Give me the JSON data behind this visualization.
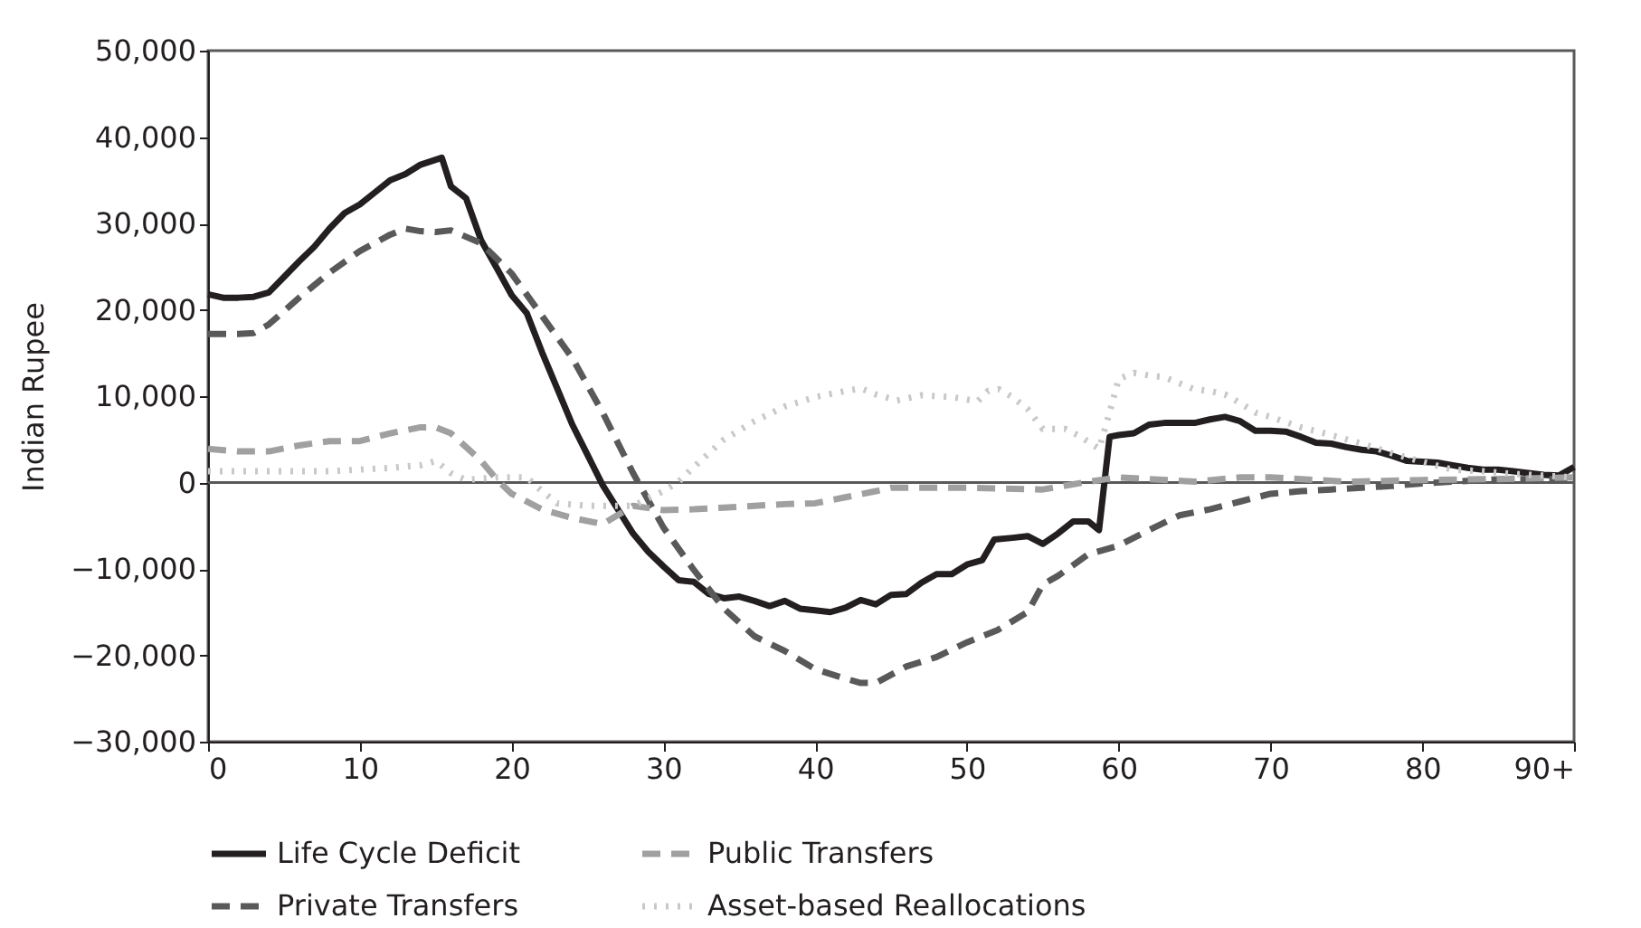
{
  "chart_data": {
    "type": "line",
    "ylabel": "Indian Rupee",
    "xlim": [
      0,
      90
    ],
    "xticks": [
      0,
      10,
      20,
      30,
      40,
      50,
      60,
      70,
      80,
      {
        "value": 90,
        "label": "90+"
      }
    ],
    "ylim": [
      -30000,
      50000
    ],
    "yticks": [
      {
        "value": -30000,
        "label": "−30,000"
      },
      {
        "value": -20000,
        "label": "−20,000"
      },
      {
        "value": -10000,
        "label": "−10,000"
      },
      0,
      {
        "value": 10000,
        "label": "10,000"
      },
      {
        "value": 20000,
        "label": "20,000"
      },
      {
        "value": 30000,
        "label": "30,000"
      },
      {
        "value": 40000,
        "label": "40,000"
      },
      {
        "value": 50000,
        "label": "50,000"
      }
    ],
    "grid": false,
    "legend": "bottom",
    "marker": "none",
    "ref_lines": [
      {
        "axis": "y",
        "value": 0,
        "label": null,
        "color": "#595959"
      }
    ],
    "series": [
      {
        "name": "Life Cycle Deficit",
        "color": "#231f20",
        "line_style": "solid",
        "x": [
          0,
          1,
          2,
          3,
          4,
          5,
          6,
          7,
          8,
          9,
          10,
          11,
          12,
          13,
          14,
          15.4,
          16,
          17,
          18,
          19,
          20,
          21,
          22,
          23,
          24,
          25,
          26,
          27,
          28,
          29,
          30,
          31,
          32,
          33,
          34,
          35,
          36,
          37,
          38,
          39,
          40,
          41,
          42,
          43,
          44,
          45,
          46,
          47,
          48,
          49,
          50,
          51,
          51.8,
          53,
          54,
          55,
          56,
          57,
          58,
          58.7,
          59.4,
          60,
          61,
          62,
          63,
          64,
          65,
          66,
          67,
          68,
          69,
          70,
          71,
          72,
          73,
          74,
          75,
          76,
          77,
          78,
          79,
          80,
          81,
          82,
          83,
          84,
          85,
          86,
          87,
          88,
          89,
          90
        ],
        "values": [
          21800,
          21400,
          21400,
          21500,
          22000,
          23800,
          25600,
          27300,
          29400,
          31200,
          32200,
          33600,
          35000,
          35700,
          36800,
          37600,
          34300,
          32900,
          28000,
          24900,
          21700,
          19600,
          15100,
          10900,
          6700,
          3200,
          -300,
          -3100,
          -5900,
          -8000,
          -9700,
          -11300,
          -11500,
          -12900,
          -13400,
          -13200,
          -13700,
          -14300,
          -13700,
          -14600,
          -14800,
          -15000,
          -14500,
          -13600,
          -14100,
          -13000,
          -12900,
          -11600,
          -10600,
          -10600,
          -9500,
          -9000,
          -6600,
          -6400,
          -6200,
          -7100,
          -5900,
          -4500,
          -4500,
          -5500,
          5300,
          5500,
          5700,
          6700,
          6900,
          6900,
          6900,
          7300,
          7600,
          7100,
          6000,
          6000,
          5900,
          5300,
          4600,
          4500,
          4100,
          3800,
          3600,
          3100,
          2500,
          2400,
          2300,
          2000,
          1700,
          1500,
          1500,
          1300,
          1100,
          900,
          800,
          1800
        ]
      },
      {
        "name": "Private Transfers",
        "color": "#595959",
        "line_style": "dashed",
        "x": [
          0,
          2,
          3,
          4,
          6,
          8,
          10,
          12,
          13,
          14,
          15,
          16,
          18,
          20,
          22,
          24,
          26,
          28,
          30,
          32,
          34,
          36,
          38,
          40,
          42,
          43,
          44,
          46,
          48,
          50,
          52,
          54,
          55,
          56,
          58,
          60,
          62,
          64,
          66,
          68,
          70,
          72,
          74,
          76,
          78,
          80,
          82,
          84,
          86,
          88,
          90
        ],
        "values": [
          17200,
          17200,
          17300,
          18300,
          21400,
          24300,
          26800,
          28700,
          29400,
          29100,
          29000,
          29200,
          27700,
          24200,
          19300,
          14400,
          8100,
          1100,
          -5200,
          -10100,
          -14600,
          -17800,
          -19500,
          -21600,
          -22700,
          -23200,
          -23200,
          -21300,
          -20200,
          -18500,
          -17100,
          -15000,
          -11800,
          -10800,
          -8300,
          -7300,
          -5500,
          -3800,
          -3100,
          -2200,
          -1300,
          -1000,
          -800,
          -600,
          -400,
          -100,
          100,
          300,
          400,
          400,
          400
        ]
      },
      {
        "name": "Public Transfers",
        "color": "#a0a0a0",
        "line_style": "dashed",
        "x": [
          0,
          2,
          4,
          6,
          8,
          10,
          12,
          14,
          15,
          16,
          18,
          19,
          20,
          22,
          24,
          26,
          28,
          30,
          32,
          34,
          36,
          38,
          40,
          42,
          44,
          45,
          50,
          55,
          58,
          60,
          62,
          65,
          68,
          70,
          75,
          80,
          85,
          90
        ],
        "values": [
          3900,
          3600,
          3600,
          4300,
          4800,
          4800,
          5700,
          6400,
          6400,
          5700,
          2500,
          400,
          -1300,
          -3100,
          -4100,
          -4800,
          -2700,
          -3200,
          -3100,
          -2900,
          -2700,
          -2500,
          -2400,
          -1700,
          -1000,
          -600,
          -600,
          -800,
          100,
          600,
          400,
          100,
          600,
          600,
          100,
          300,
          400,
          600
        ]
      },
      {
        "name": "Asset-based Reallocations",
        "color": "#c8c8c8",
        "line_style": "dotted",
        "x": [
          0,
          4,
          8,
          12,
          14,
          15,
          16,
          17,
          19,
          21,
          22,
          23,
          25,
          28,
          30,
          31,
          32,
          34,
          36,
          38,
          40,
          42,
          43,
          44,
          45.4,
          47,
          49,
          50.7,
          51.4,
          52.1,
          53,
          54,
          55,
          56.5,
          57.5,
          58.7,
          59.4,
          60,
          61,
          62,
          63,
          64,
          65,
          66,
          67,
          68,
          69,
          70,
          72,
          74,
          76,
          78,
          80,
          82,
          84,
          86,
          88,
          90
        ],
        "values": [
          1300,
          1300,
          1300,
          1700,
          2000,
          2500,
          1100,
          300,
          600,
          600,
          -1000,
          -2400,
          -2700,
          -2700,
          -1000,
          100,
          1800,
          5000,
          7100,
          8800,
          9900,
          10600,
          10900,
          10200,
          9500,
          10100,
          9900,
          9400,
          10600,
          10800,
          9900,
          8500,
          6200,
          6200,
          5300,
          3900,
          8100,
          12000,
          12700,
          12400,
          12200,
          11500,
          10800,
          10600,
          10200,
          9200,
          8100,
          7600,
          6400,
          5500,
          4500,
          3400,
          2400,
          1500,
          1300,
          1000,
          800,
          600
        ]
      }
    ]
  }
}
